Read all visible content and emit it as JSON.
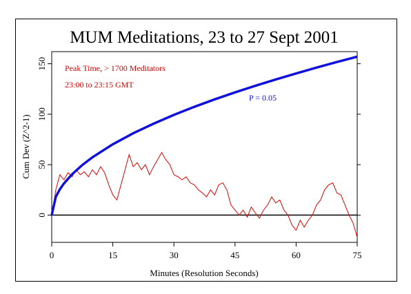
{
  "chart_data": {
    "type": "line",
    "title": "MUM Meditations, 23 to 27 Sept 2001",
    "xlabel": "Minutes (Resolution Seconds)",
    "ylabel": "Cum Dev (Z^2-1)",
    "xlim": [
      0,
      75
    ],
    "ylim": [
      -27,
      162
    ],
    "xticks": [
      0,
      15,
      30,
      45,
      60,
      75
    ],
    "yticks": [
      0,
      50,
      100,
      150
    ],
    "reference_line": 0,
    "annotations": [
      {
        "text": "Peak Time, > 1700 Meditators",
        "color": "#dd0000"
      },
      {
        "text": "23:00 to 23:15 GMT",
        "color": "#dd0000"
      }
    ],
    "series": [
      {
        "color": "#e00000",
        "x": [
          0,
          1,
          2,
          3,
          4,
          5,
          6,
          7,
          8,
          9,
          10,
          11,
          12,
          13,
          14,
          15,
          16,
          17,
          18,
          19,
          20,
          21,
          22,
          23,
          24,
          25,
          26,
          27,
          28,
          29,
          30,
          31,
          32,
          33,
          34,
          35,
          36,
          37,
          38,
          39,
          40,
          41,
          42,
          43,
          44,
          45,
          46,
          47,
          48,
          49,
          50,
          51,
          52,
          53,
          54,
          55,
          56,
          57,
          58,
          59,
          60,
          61,
          62,
          63,
          64,
          65,
          66,
          67,
          68,
          69,
          70,
          71,
          72,
          73,
          74,
          75
        ],
        "values": [
          0,
          25,
          40,
          35,
          42,
          38,
          45,
          40,
          43,
          38,
          45,
          40,
          48,
          42,
          30,
          20,
          15,
          30,
          45,
          60,
          48,
          52,
          45,
          50,
          40,
          48,
          55,
          62,
          55,
          50,
          40,
          38,
          35,
          38,
          32,
          30,
          25,
          22,
          18,
          25,
          20,
          30,
          32,
          25,
          10,
          5,
          0,
          5,
          -2,
          8,
          2,
          -3,
          5,
          10,
          18,
          12,
          15,
          5,
          0,
          -10,
          -15,
          -5,
          -12,
          -5,
          0,
          10,
          15,
          25,
          30,
          32,
          22,
          20,
          10,
          0,
          -8,
          -22
        ]
      },
      {
        "name": "P = 0.05",
        "color": "#1010dd",
        "x": [
          0,
          1,
          2,
          3,
          5,
          7.5,
          10,
          15,
          20,
          25,
          30,
          35,
          40,
          45,
          50,
          55,
          60,
          65,
          70,
          75
        ],
        "values": [
          0,
          18.1,
          25.6,
          31.4,
          40.5,
          49.6,
          57.3,
          70.2,
          81.1,
          90.6,
          99.3,
          107.3,
          114.7,
          121.6,
          128.2,
          134.4,
          140.4,
          146.2,
          151.7,
          157
        ]
      }
    ]
  }
}
